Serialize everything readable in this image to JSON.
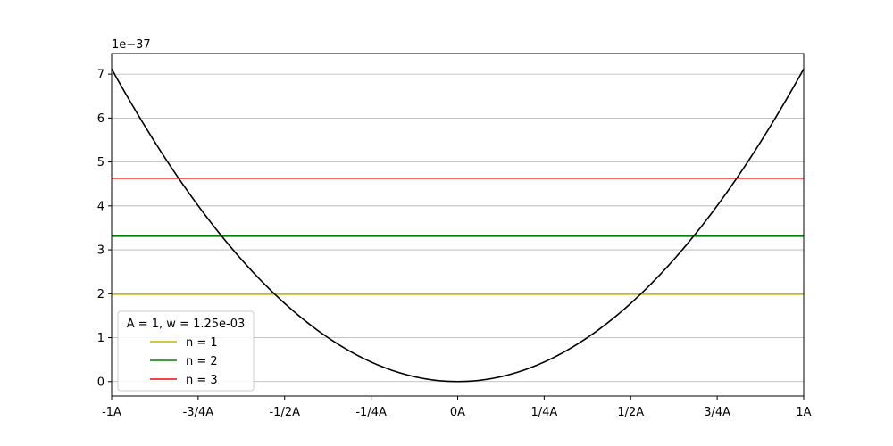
{
  "chart_data": {
    "type": "line",
    "title": "",
    "xlabel": "",
    "ylabel": "",
    "y_offset_label": "1e−37",
    "y_scale": 1e-37,
    "xlim": [
      -1,
      1
    ],
    "ylim": [
      -0.33,
      7.47
    ],
    "x_ticks": [
      {
        "value": -1,
        "label": "-1A"
      },
      {
        "value": -0.75,
        "label": "-3/4A"
      },
      {
        "value": -0.5,
        "label": "-1/2A"
      },
      {
        "value": -0.25,
        "label": "-1/4A"
      },
      {
        "value": 0,
        "label": "0A"
      },
      {
        "value": 0.25,
        "label": "1/4A"
      },
      {
        "value": 0.5,
        "label": "1/2A"
      },
      {
        "value": 0.75,
        "label": "3/4A"
      },
      {
        "value": 1,
        "label": "1A"
      }
    ],
    "y_ticks": [
      0,
      1,
      2,
      3,
      4,
      5,
      6,
      7
    ],
    "grid": "horizontal",
    "potential": {
      "color": "#000000",
      "x": [
        -1,
        -0.75,
        -0.5,
        -0.25,
        0,
        0.25,
        0.5,
        0.75,
        1
      ],
      "y": [
        7.12,
        4.0,
        1.78,
        0.445,
        0,
        0.445,
        1.78,
        4.0,
        7.12
      ]
    },
    "series": [
      {
        "name": "n = 1",
        "color": "#c8b400",
        "y": 1.99
      },
      {
        "name": "n = 2",
        "color": "#008000",
        "y": 3.31
      },
      {
        "name": "n = 3",
        "color": "#ff0000",
        "y": 4.63
      }
    ],
    "legend": {
      "title": "A = 1, w = 1.25e-03",
      "placement": "lower-left"
    }
  }
}
